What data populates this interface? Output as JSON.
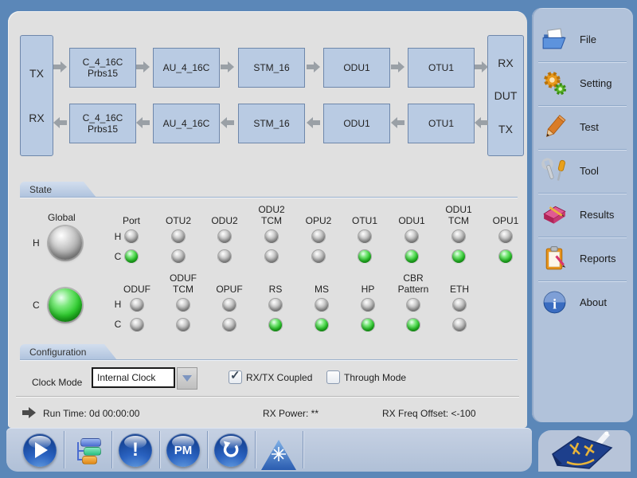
{
  "colors": {
    "background": "#5b87b8",
    "panel": "#e0e0e0",
    "box_fill": "#b9cbe3",
    "led_green": "#2ecc2e",
    "led_off": "#9b9b9b",
    "sidebar": "#b1c2da"
  },
  "flow": {
    "left_port": {
      "top": "TX",
      "bottom": "RX"
    },
    "right_port": {
      "top": "RX",
      "middle": "DUT",
      "bottom": "TX"
    },
    "tx_chain": [
      "C_4_16C\nPrbs15",
      "AU_4_16C",
      "STM_16",
      "ODU1",
      "OTU1"
    ],
    "rx_chain": [
      "C_4_16C\nPrbs15",
      "AU_4_16C",
      "STM_16",
      "ODU1",
      "OTU1"
    ]
  },
  "state": {
    "tab_label": "State",
    "global_label": "Global",
    "h_label": "H",
    "c_label": "C",
    "global": {
      "h": "off",
      "c": "green"
    },
    "row1": [
      {
        "label": "Port",
        "h": "off",
        "c": "green"
      },
      {
        "label": "OTU2",
        "h": "off",
        "c": "off"
      },
      {
        "label": "ODU2",
        "h": "off",
        "c": "off"
      },
      {
        "label": "ODU2\nTCM",
        "h": "off",
        "c": "off"
      },
      {
        "label": "OPU2",
        "h": "off",
        "c": "off"
      },
      {
        "label": "OTU1",
        "h": "off",
        "c": "green"
      },
      {
        "label": "ODU1",
        "h": "off",
        "c": "green"
      },
      {
        "label": "ODU1\nTCM",
        "h": "off",
        "c": "green"
      },
      {
        "label": "OPU1",
        "h": "off",
        "c": "green"
      }
    ],
    "row2": [
      {
        "label": "ODUF",
        "h": "off",
        "c": "off"
      },
      {
        "label": "ODUF\nTCM",
        "h": "off",
        "c": "off"
      },
      {
        "label": "OPUF",
        "h": "off",
        "c": "off"
      },
      {
        "label": "RS",
        "h": "off",
        "c": "green"
      },
      {
        "label": "MS",
        "h": "off",
        "c": "green"
      },
      {
        "label": "HP",
        "h": "off",
        "c": "green"
      },
      {
        "label": "CBR\nPattern",
        "h": "off",
        "c": "green"
      },
      {
        "label": "ETH",
        "h": "off",
        "c": "off"
      }
    ]
  },
  "configuration": {
    "tab_label": "Configuration",
    "clock_mode_label": "Clock Mode",
    "clock_mode_value": "Internal Clock",
    "rxtx_coupled_label": "RX/TX Coupled",
    "rxtx_coupled_checked": true,
    "through_mode_label": "Through Mode",
    "through_mode_checked": false,
    "check_glyph": "✓"
  },
  "status": {
    "run_time": "Run Time: 0d 00:00:00",
    "rx_power": "RX Power: **",
    "rx_freq_offset": "RX Freq Offset: <-100"
  },
  "sidebar": {
    "items": [
      {
        "label": "File",
        "icon": "folder-icon"
      },
      {
        "label": "Setting",
        "icon": "gears-icon"
      },
      {
        "label": "Test",
        "icon": "pencil-icon"
      },
      {
        "label": "Tool",
        "icon": "tools-icon"
      },
      {
        "label": "Results",
        "icon": "book-icon"
      },
      {
        "label": "Reports",
        "icon": "clipboard-icon"
      },
      {
        "label": "About",
        "icon": "info-icon"
      }
    ]
  },
  "toolbar": {
    "buttons": [
      {
        "name": "start",
        "icon": "play-icon",
        "text": ""
      },
      {
        "name": "signal-structure",
        "icon": "tree-icon",
        "text": ""
      },
      {
        "name": "alarm",
        "icon": "exclamation-icon",
        "text": "!"
      },
      {
        "name": "performance-monitor",
        "icon": "pm-icon",
        "text": "PM"
      },
      {
        "name": "restart",
        "icon": "undo-icon",
        "text": ""
      },
      {
        "name": "laser",
        "icon": "laser-triangle-icon",
        "text": ""
      }
    ]
  }
}
